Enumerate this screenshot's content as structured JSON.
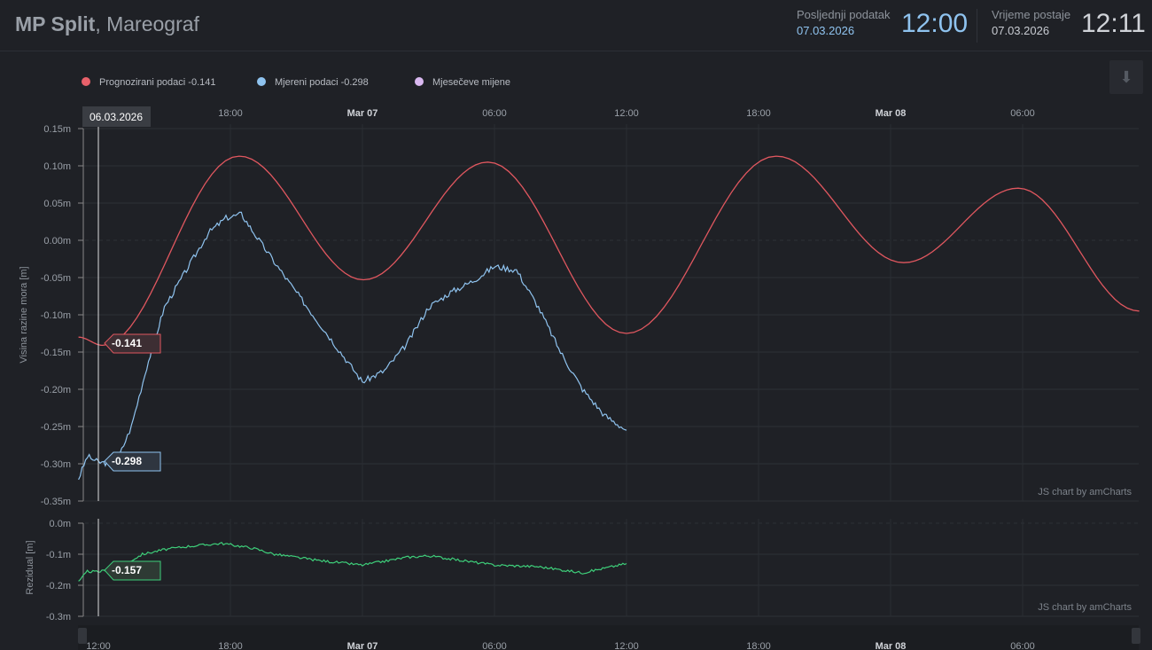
{
  "header": {
    "title_bold": "MP Split",
    "title_rest": ", Mareograf",
    "last_label": "Posljednji podatak",
    "last_date": "07.03.2026",
    "last_time": "12:00",
    "station_label": "Vrijeme postaje",
    "station_date": "07.03.2026",
    "station_time": "12:11"
  },
  "download_icon": "download-icon",
  "chart_data": [
    {
      "type": "line",
      "title": "",
      "ylabel": "Visina razine mora [m]",
      "ylim": [
        -0.35,
        0.15
      ],
      "yticks": [
        "0.15m",
        "0.10m",
        "0.05m",
        "0.00m",
        "-0.05m",
        "-0.10m",
        "-0.15m",
        "-0.20m",
        "-0.25m",
        "-0.30m",
        "-0.35m"
      ],
      "xticks": [
        {
          "h": 18,
          "label": "18:00"
        },
        {
          "h": 24,
          "label": "Mar 07",
          "bold": true
        },
        {
          "h": 30,
          "label": "06:00"
        },
        {
          "h": 36,
          "label": "12:00"
        },
        {
          "h": 42,
          "label": "18:00"
        },
        {
          "h": 48,
          "label": "Mar 08",
          "bold": true
        },
        {
          "h": 54,
          "label": "06:00"
        }
      ],
      "x_unit": "hours since 06.03.2026 00:00",
      "legend": [
        {
          "name": "Prognozirani podaci",
          "value": "-0.141",
          "color": "#e8616a"
        },
        {
          "name": "Mjereni podaci",
          "value": "-0.298",
          "color": "#8fc3ef"
        },
        {
          "name": "Mjesečeve mijene",
          "value": "",
          "color": "#d9b8f0"
        }
      ],
      "series": [
        {
          "name": "Prognozirani podaci",
          "color": "#e0575f",
          "extrema": [
            [
              11.1,
              -0.13
            ],
            [
              12.2,
              -0.141
            ],
            [
              18.4,
              0.113
            ],
            [
              24.05,
              -0.053
            ],
            [
              29.7,
              0.105
            ],
            [
              36,
              -0.125
            ],
            [
              42.8,
              0.113
            ],
            [
              48.6,
              -0.03
            ],
            [
              53.8,
              0.07
            ],
            [
              59.3,
              -0.095
            ]
          ]
        },
        {
          "name": "Mjereni podaci",
          "color": "#8fc3ef",
          "points": [
            [
              11.1,
              -0.32
            ],
            [
              11.5,
              -0.29
            ],
            [
              12,
              -0.298
            ],
            [
              12.8,
              -0.3
            ],
            [
              13.5,
              -0.25
            ],
            [
              14.2,
              -0.17
            ],
            [
              15,
              -0.09
            ],
            [
              16,
              -0.04
            ],
            [
              17,
              0.01
            ],
            [
              17.8,
              0.03
            ],
            [
              18.5,
              0.035
            ],
            [
              19.3,
              0.0
            ],
            [
              20.5,
              -0.05
            ],
            [
              21.5,
              -0.09
            ],
            [
              22.5,
              -0.13
            ],
            [
              23.5,
              -0.17
            ],
            [
              24,
              -0.19
            ],
            [
              25,
              -0.175
            ],
            [
              26,
              -0.14
            ],
            [
              27,
              -0.09
            ],
            [
              28,
              -0.07
            ],
            [
              29,
              -0.055
            ],
            [
              30,
              -0.035
            ],
            [
              31,
              -0.04
            ],
            [
              32,
              -0.09
            ],
            [
              33,
              -0.15
            ],
            [
              34,
              -0.2
            ],
            [
              35,
              -0.235
            ],
            [
              36,
              -0.255
            ]
          ]
        }
      ],
      "cursor": {
        "date": "06.03.2026",
        "h": 12,
        "values": [
          "-0.141",
          "-0.298"
        ]
      },
      "credit": "JS chart by amCharts"
    },
    {
      "type": "line",
      "ylabel": "Rezidual [m]",
      "ylim": [
        -0.3,
        0.0
      ],
      "yticks": [
        "0.0m",
        "-0.1m",
        "-0.2m",
        "-0.3m"
      ],
      "xticks": [
        {
          "h": 12,
          "label": "12:00"
        },
        {
          "h": 18,
          "label": "18:00"
        },
        {
          "h": 24,
          "label": "Mar 07",
          "bold": true
        },
        {
          "h": 30,
          "label": "06:00"
        },
        {
          "h": 36,
          "label": "12:00"
        },
        {
          "h": 42,
          "label": "18:00"
        },
        {
          "h": 48,
          "label": "Mar 08",
          "bold": true
        },
        {
          "h": 54,
          "label": "06:00"
        }
      ],
      "series": [
        {
          "name": "Rezidual",
          "color": "#3ecf7a",
          "points": [
            [
              11.1,
              -0.19
            ],
            [
              11.5,
              -0.155
            ],
            [
              12,
              -0.157
            ],
            [
              13,
              -0.14
            ],
            [
              14,
              -0.1
            ],
            [
              15,
              -0.085
            ],
            [
              16,
              -0.075
            ],
            [
              17.6,
              -0.065
            ],
            [
              19,
              -0.08
            ],
            [
              20,
              -0.1
            ],
            [
              22,
              -0.12
            ],
            [
              24,
              -0.135
            ],
            [
              26,
              -0.11
            ],
            [
              27,
              -0.105
            ],
            [
              28,
              -0.115
            ],
            [
              30,
              -0.135
            ],
            [
              32,
              -0.14
            ],
            [
              34,
              -0.16
            ],
            [
              35,
              -0.145
            ],
            [
              36,
              -0.13
            ]
          ]
        }
      ],
      "cursor": {
        "value": "-0.157"
      },
      "credit": "JS chart by amCharts"
    }
  ]
}
